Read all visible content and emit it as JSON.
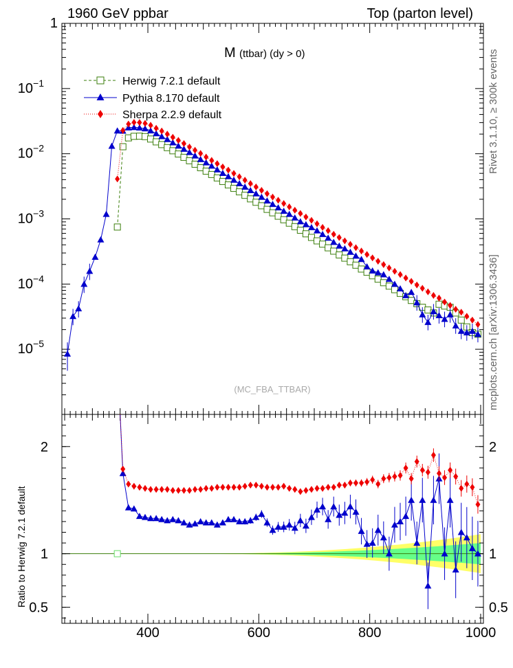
{
  "header": {
    "left": "1960 GeV ppbar",
    "right": "Top (parton level)"
  },
  "side": {
    "rivet": "Rivet 3.1.10, ≥ 300k events",
    "mcplots": "mcplots.cern.ch [arXiv:1306.3436]"
  },
  "chart_data": [
    {
      "type": "line",
      "title_main": "M",
      "title_sub": "(ttbar) (dy > 0)",
      "analysis_tag": "(MC_FBA_TTBAR)",
      "xlabel": "",
      "ylabel": "",
      "yscale": "log",
      "xlim": [
        245,
        1005
      ],
      "ylim": [
        1e-06,
        1
      ],
      "y_ticks": [
        {
          "v": 1,
          "base": "1",
          "exp": ""
        },
        {
          "v": 0.1,
          "base": "10",
          "exp": "−1"
        },
        {
          "v": 0.01,
          "base": "10",
          "exp": "−2"
        },
        {
          "v": 0.001,
          "base": "10",
          "exp": "−3"
        },
        {
          "v": 0.0001,
          "base": "10",
          "exp": "−4"
        },
        {
          "v": 1e-05,
          "base": "10",
          "exp": "−5"
        }
      ],
      "series": [
        {
          "name": "Herwig 7.2.1 default",
          "color": "#3a7d0a",
          "marker": "square-open",
          "dash": "4,3",
          "x": [
            345,
            355,
            365,
            375,
            385,
            395,
            405,
            415,
            425,
            435,
            445,
            455,
            465,
            475,
            485,
            495,
            505,
            515,
            525,
            535,
            545,
            555,
            565,
            575,
            585,
            595,
            605,
            615,
            625,
            635,
            645,
            655,
            665,
            675,
            685,
            695,
            705,
            715,
            725,
            735,
            745,
            755,
            765,
            775,
            785,
            795,
            805,
            815,
            825,
            835,
            845,
            855,
            865,
            875,
            885,
            895,
            905,
            915,
            925,
            935,
            945,
            955,
            965,
            975,
            985,
            995
          ],
          "values": [
            0.00075,
            0.0128,
            0.0175,
            0.0185,
            0.0186,
            0.0183,
            0.0168,
            0.0152,
            0.0138,
            0.0124,
            0.0111,
            0.0099,
            0.0088,
            0.0078,
            0.0069,
            0.0061,
            0.0054,
            0.0048,
            0.00425,
            0.00375,
            0.00332,
            0.00294,
            0.0026,
            0.0023,
            0.00203,
            0.0018,
            0.00159,
            0.0014,
            0.00124,
            0.0011,
            0.00097,
            0.00086,
            0.00076,
            0.00067,
            0.00059,
            0.00052,
            0.00046,
            0.00041,
            0.00036,
            0.00032,
            0.00028,
            0.00025,
            0.00022,
            0.000195,
            0.00017,
            0.000152,
            0.000134,
            0.000119,
            0.000105,
            9.3e-05,
            8.2e-05,
            7.2e-05,
            6.4e-05,
            5.6e-05,
            5e-05,
            4.4e-05,
            4e-05,
            3.6e-05,
            4.9e-05,
            4.6e-05,
            4.4e-05,
            3.6e-05,
            2.8e-05,
            2.2e-05,
            1.8e-05,
            1.7e-05
          ]
        },
        {
          "name": "Pythia 8.170 default",
          "color": "#0000cc",
          "marker": "triangle",
          "dash": "",
          "x": [
            255,
            265,
            275,
            285,
            295,
            305,
            315,
            325,
            335,
            345,
            355,
            365,
            375,
            385,
            395,
            405,
            415,
            425,
            435,
            445,
            455,
            465,
            475,
            485,
            495,
            505,
            515,
            525,
            535,
            545,
            555,
            565,
            575,
            585,
            595,
            605,
            615,
            625,
            635,
            645,
            655,
            665,
            675,
            685,
            695,
            705,
            715,
            725,
            735,
            745,
            755,
            765,
            775,
            785,
            795,
            805,
            815,
            825,
            835,
            845,
            855,
            865,
            875,
            885,
            895,
            905,
            915,
            925,
            935,
            945,
            955,
            965,
            975,
            985,
            995
          ],
          "values": [
            8.5e-06,
            3.2e-05,
            4.2e-05,
            0.0001,
            0.000158,
            0.00026,
            0.00048,
            0.00118,
            0.0131,
            0.0225,
            0.0224,
            0.0251,
            0.0254,
            0.025,
            0.0243,
            0.0226,
            0.0204,
            0.0184,
            0.0166,
            0.0148,
            0.0132,
            0.0118,
            0.0105,
            0.0093,
            0.0082,
            0.0073,
            0.0065,
            0.0057,
            0.00503,
            0.00448,
            0.00395,
            0.00349,
            0.00309,
            0.00274,
            0.00244,
            0.00216,
            0.0019,
            0.00168,
            0.00149,
            0.00132,
            0.00118,
            0.00104,
            0.00091,
            0.00082,
            0.00074,
            0.00066,
            0.00058,
            0.00051,
            0.00044,
            0.000385,
            0.00035,
            0.00031,
            0.00027,
            0.00024,
            0.000185,
            0.00016,
            0.00015,
            0.00014,
            0.000119,
            0.0001,
            8.5e-05,
            6.7e-05,
            7.5e-05,
            5.2e-05,
            3.4e-05,
            2.6e-05,
            3.8e-05,
            3.3e-05,
            2.9e-05,
            3.4e-05,
            2.3e-05,
            1.9e-05,
            1.8e-05,
            1.9e-05,
            1.7e-05
          ]
        },
        {
          "name": "Sherpa 2.2.9 default",
          "color": "#ee0000",
          "marker": "diamond",
          "dash": "1,2",
          "x": [
            345,
            355,
            365,
            375,
            385,
            395,
            405,
            415,
            425,
            435,
            445,
            455,
            465,
            475,
            485,
            495,
            505,
            515,
            525,
            535,
            545,
            555,
            565,
            575,
            585,
            595,
            605,
            615,
            625,
            635,
            645,
            655,
            665,
            675,
            685,
            695,
            705,
            715,
            725,
            735,
            745,
            755,
            765,
            775,
            785,
            795,
            805,
            815,
            825,
            835,
            845,
            855,
            865,
            875,
            885,
            895,
            905,
            915,
            925,
            935,
            945,
            955,
            965,
            975,
            985,
            995
          ],
          "values": [
            0.0041,
            0.0228,
            0.0285,
            0.0302,
            0.0301,
            0.0292,
            0.0273,
            0.0246,
            0.0223,
            0.02,
            0.0179,
            0.016,
            0.0143,
            0.0127,
            0.0113,
            0.0101,
            0.0089,
            0.0079,
            0.00705,
            0.00628,
            0.0056,
            0.00498,
            0.00443,
            0.00393,
            0.00348,
            0.00309,
            0.00274,
            0.00243,
            0.00216,
            0.00193,
            0.00172,
            0.00153,
            0.00136,
            0.00121,
            0.00107,
            0.00095,
            0.00084,
            0.00074,
            0.00066,
            0.00058,
            0.000517,
            0.00046,
            0.000407,
            0.000362,
            0.000321,
            0.000285,
            0.000252,
            0.000224,
            0.000199,
            0.000177,
            0.000157,
            0.00014,
            0.000124,
            0.00011,
            9.7e-05,
            8.6e-05,
            7.6e-05,
            6.7e-05,
            6.1e-05,
            5.3e-05,
            4.7e-05,
            4.1e-05,
            3.7e-05,
            3.2e-05,
            2.8e-05,
            2.4e-05
          ]
        }
      ]
    },
    {
      "type": "line",
      "xlabel": "",
      "ylabel": "Ratio to Herwig 7.2.1 default",
      "xlim": [
        245,
        1005
      ],
      "ylim": [
        0.35,
        2.3
      ],
      "x_ticks": [
        400,
        600,
        800,
        1000
      ],
      "y_ticks": [
        0.5,
        1,
        2
      ],
      "reference": {
        "name": "Herwig 7.2.1 default",
        "value": 1,
        "color": "#3a7d0a"
      },
      "bands": [
        {
          "name": "Herwig 7.2.1 default (2σ)",
          "color": "#ffff66"
        },
        {
          "name": "Herwig 7.2.1 default (1σ)",
          "color": "#66ff88"
        }
      ],
      "series": [
        {
          "name": "Pythia 8.170 default",
          "color": "#0000cc",
          "marker": "triangle",
          "x": [
            355,
            365,
            375,
            385,
            395,
            405,
            415,
            425,
            435,
            445,
            455,
            465,
            475,
            485,
            495,
            505,
            515,
            525,
            535,
            545,
            555,
            565,
            575,
            585,
            595,
            605,
            615,
            625,
            635,
            645,
            655,
            665,
            675,
            685,
            695,
            705,
            715,
            725,
            735,
            745,
            755,
            765,
            775,
            785,
            795,
            805,
            815,
            825,
            835,
            845,
            855,
            865,
            875,
            885,
            895,
            905,
            915,
            925,
            935,
            945,
            955,
            965,
            975,
            985,
            995
          ],
          "values": [
            1.75,
            1.43,
            1.42,
            1.35,
            1.34,
            1.33,
            1.33,
            1.32,
            1.31,
            1.32,
            1.31,
            1.29,
            1.27,
            1.28,
            1.3,
            1.29,
            1.29,
            1.27,
            1.29,
            1.32,
            1.32,
            1.3,
            1.3,
            1.31,
            1.34,
            1.37,
            1.29,
            1.22,
            1.25,
            1.25,
            1.27,
            1.24,
            1.31,
            1.26,
            1.34,
            1.41,
            1.44,
            1.32,
            1.44,
            1.36,
            1.38,
            1.44,
            1.39,
            1.21,
            1.09,
            1.1,
            1.22,
            1.15,
            1.0,
            1.27,
            1.3,
            1.35,
            1.5,
            1.1,
            1.5,
            0.7,
            1.5,
            1.7,
            1.0,
            1.5,
            0.85,
            1.2,
            1.15,
            1.05,
            1.0
          ]
        },
        {
          "name": "Sherpa 2.2.9 default",
          "color": "#ee0000",
          "marker": "diamond",
          "x": [
            355,
            365,
            375,
            385,
            395,
            405,
            415,
            425,
            435,
            445,
            455,
            465,
            475,
            485,
            495,
            505,
            515,
            525,
            535,
            545,
            555,
            565,
            575,
            585,
            595,
            605,
            615,
            625,
            635,
            645,
            655,
            665,
            675,
            685,
            695,
            705,
            715,
            725,
            735,
            745,
            755,
            765,
            775,
            785,
            795,
            805,
            815,
            825,
            835,
            845,
            855,
            865,
            875,
            885,
            895,
            905,
            915,
            925,
            935,
            945,
            955,
            965,
            975,
            985,
            995
          ],
          "values": [
            1.79,
            1.65,
            1.63,
            1.62,
            1.61,
            1.6,
            1.6,
            1.6,
            1.6,
            1.59,
            1.59,
            1.59,
            1.59,
            1.6,
            1.6,
            1.61,
            1.61,
            1.62,
            1.62,
            1.62,
            1.62,
            1.62,
            1.63,
            1.64,
            1.64,
            1.63,
            1.62,
            1.62,
            1.62,
            1.63,
            1.61,
            1.6,
            1.58,
            1.59,
            1.6,
            1.61,
            1.61,
            1.62,
            1.62,
            1.64,
            1.64,
            1.66,
            1.66,
            1.66,
            1.67,
            1.69,
            1.65,
            1.7,
            1.71,
            1.72,
            1.73,
            1.8,
            1.7,
            1.86,
            1.78,
            1.76,
            1.92,
            1.75,
            1.71,
            1.78,
            1.72,
            1.61,
            1.65,
            1.62,
            1.46
          ]
        }
      ]
    }
  ]
}
